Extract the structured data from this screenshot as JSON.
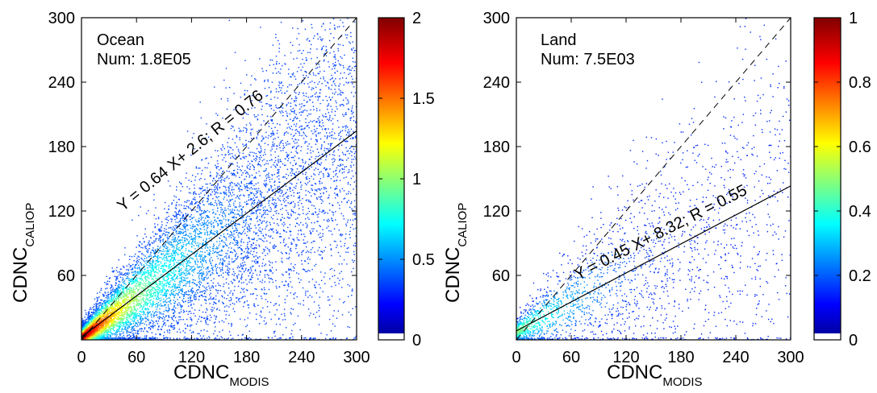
{
  "chart_data": [
    {
      "type": "scatter",
      "panel": "Ocean",
      "title": "",
      "annotation_region": "Ocean",
      "annotation_count": "Num: 1.8E05",
      "regression_label": "Y = 0.64 X+   2.6; R = 0.76",
      "regression": {
        "slope": 0.64,
        "intercept": 2.6,
        "R": 0.76
      },
      "xlabel_main": "CDNC",
      "xlabel_sub": "MODIS",
      "ylabel_main": "CDNC",
      "ylabel_sub": "CALIOP",
      "xlim": [
        0,
        300
      ],
      "ylim": [
        0,
        300
      ],
      "xticks": [
        0,
        60,
        120,
        180,
        240,
        300
      ],
      "yticks": [
        60,
        120,
        180,
        240,
        300
      ],
      "reference_lines": [
        "1:1 dashed",
        "regression solid"
      ],
      "colorbar": {
        "min": 0,
        "max": 2,
        "ticks": [
          0,
          0.5,
          1,
          1.5,
          2
        ],
        "tick_labels": [
          "0",
          "0.5",
          "1",
          "1.5",
          "2"
        ],
        "colormap": "jet"
      },
      "density_description": {
        "points": [
          [
            8,
            6
          ],
          [
            15,
            12
          ],
          [
            22,
            16
          ],
          [
            30,
            22
          ],
          [
            35,
            28
          ],
          [
            42,
            33
          ],
          [
            50,
            38
          ],
          [
            58,
            42
          ],
          [
            65,
            48
          ],
          [
            75,
            55
          ],
          [
            85,
            60
          ],
          [
            95,
            66
          ],
          [
            110,
            75
          ],
          [
            125,
            85
          ],
          [
            140,
            95
          ],
          [
            160,
            105
          ],
          [
            180,
            115
          ],
          [
            200,
            128
          ]
        ],
        "peak_value": 2
      }
    },
    {
      "type": "scatter",
      "panel": "Land",
      "title": "",
      "annotation_region": "Land",
      "annotation_count": "Num: 7.5E03",
      "regression_label": "Y = 0.45 X+   8.32; R = 0.55",
      "regression": {
        "slope": 0.45,
        "intercept": 8.32,
        "R": 0.55
      },
      "xlabel_main": "CDNC",
      "xlabel_sub": "MODIS",
      "ylabel_main": "CDNC",
      "ylabel_sub": "CALIOP",
      "xlim": [
        0,
        300
      ],
      "ylim": [
        0,
        300
      ],
      "xticks": [
        0,
        60,
        120,
        180,
        240,
        300
      ],
      "yticks": [
        60,
        120,
        180,
        240,
        300
      ],
      "reference_lines": [
        "1:1 dashed",
        "regression solid"
      ],
      "colorbar": {
        "min": 0,
        "max": 1,
        "ticks": [
          0,
          0.2,
          0.4,
          0.6,
          0.8,
          1
        ],
        "tick_labels": [
          "0",
          "0.2",
          "0.4",
          "0.6",
          "0.8",
          "1"
        ],
        "colormap": "jet"
      },
      "density_description": {
        "points": [
          [
            20,
            12
          ],
          [
            30,
            18
          ],
          [
            40,
            22
          ],
          [
            50,
            26
          ],
          [
            60,
            30
          ],
          [
            75,
            36
          ],
          [
            90,
            42
          ],
          [
            110,
            48
          ],
          [
            130,
            55
          ],
          [
            160,
            62
          ],
          [
            200,
            75
          ],
          [
            250,
            88
          ]
        ],
        "peak_value": 0.6
      }
    }
  ]
}
